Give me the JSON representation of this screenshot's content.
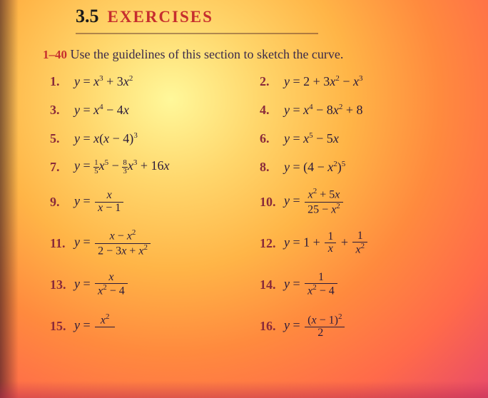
{
  "colors": {
    "accent_red": "#c62e2e",
    "num_red": "#8a2a3a",
    "body_text": "#2a1a3a",
    "bg_center": "#fff89a",
    "bg_edge": "#e84a6a"
  },
  "typography": {
    "section_num_fontsize": 26,
    "section_title_fontsize": 23,
    "intro_fontsize": 18,
    "exercise_fontsize": 18,
    "font_family": "Times New Roman"
  },
  "header": {
    "section_number": "3.5",
    "section_title": "EXERCISES"
  },
  "intro": {
    "range": "1–40",
    "text": "Use the guidelines of this section to sketch the curve."
  },
  "exercises": [
    {
      "n": "1.",
      "html": "<i>y</i> = <i>x</i><span class='sup'>3</span> + 3<i>x</i><span class='sup'>2</span>",
      "tall": false
    },
    {
      "n": "2.",
      "html": "<i>y</i> = 2 + 3<i>x</i><span class='sup'>2</span> − <i>x</i><span class='sup'>3</span>",
      "tall": false
    },
    {
      "n": "3.",
      "html": "<i>y</i> = <i>x</i><span class='sup'>4</span> − 4<i>x</i>",
      "tall": false
    },
    {
      "n": "4.",
      "html": "<i>y</i> = <i>x</i><span class='sup'>4</span> − 8<i>x</i><span class='sup'>2</span> + 8",
      "tall": false
    },
    {
      "n": "5.",
      "html": "<i>y</i> = <i>x</i>(<i>x</i> − 4)<span class='sup'>3</span>",
      "tall": false
    },
    {
      "n": "6.",
      "html": "<i>y</i> = <i>x</i><span class='sup'>5</span> − 5<i>x</i>",
      "tall": false
    },
    {
      "n": "7.",
      "html": "<i>y</i> = <span class='sfrac'><span class='fn'>1</span><span class='fd'>5</span></span><i>x</i><span class='sup'>5</span> − <span class='sfrac'><span class='fn'>8</span><span class='fd'>3</span></span><i>x</i><span class='sup'>3</span> + 16<i>x</i>",
      "tall": false
    },
    {
      "n": "8.",
      "html": "<i>y</i> = (4 − <i>x</i><span class='sup'>2</span>)<span class='sup'>5</span>",
      "tall": false
    },
    {
      "n": "9.",
      "html": "<i>y</i> = <span class='frac'><span class='fn'><i>x</i></span><span class='fd'><i>x</i> − 1</span></span>",
      "tall": true
    },
    {
      "n": "10.",
      "html": "<i>y</i> = <span class='frac'><span class='fn'><i>x</i><span class='sup'>2</span> + 5<i>x</i></span><span class='fd'>25 − <i>x</i><span class='sup'>2</span></span></span>",
      "tall": true
    },
    {
      "n": "11.",
      "html": "<i>y</i> = <span class='frac'><span class='fn'><i>x</i> − <i>x</i><span class='sup'>2</span></span><span class='fd'>2 − 3<i>x</i> + <i>x</i><span class='sup'>2</span></span></span>",
      "tall": true
    },
    {
      "n": "12.",
      "html": "<i>y</i> = 1 + <span class='frac'><span class='fn'>1</span><span class='fd'><i>x</i></span></span> + <span class='frac'><span class='fn'>1</span><span class='fd'><i>x</i><span class='sup'>2</span></span></span>",
      "tall": true
    },
    {
      "n": "13.",
      "html": "<i>y</i> = <span class='frac'><span class='fn'><i>x</i></span><span class='fd'><i>x</i><span class='sup'>2</span> − 4</span></span>",
      "tall": true
    },
    {
      "n": "14.",
      "html": "<i>y</i> = <span class='frac'><span class='fn'>1</span><span class='fd'><i>x</i><span class='sup'>2</span> − 4</span></span>",
      "tall": true
    },
    {
      "n": "15.",
      "html": "<i>y</i> = <span class='frac'><span class='fn'><i>x</i><span class='sup'>2</span></span><span class='fd'>&nbsp;&nbsp;&nbsp;&nbsp;&nbsp;</span></span>",
      "tall": true
    },
    {
      "n": "16.",
      "html": "<i>y</i> = <span class='frac'><span class='fn'>(<i>x</i> − 1)<span class='sup'>2</span></span><span class='fd'>&nbsp;&nbsp;2&nbsp;&nbsp;&nbsp;&nbsp;&nbsp;</span></span>",
      "tall": true
    }
  ]
}
